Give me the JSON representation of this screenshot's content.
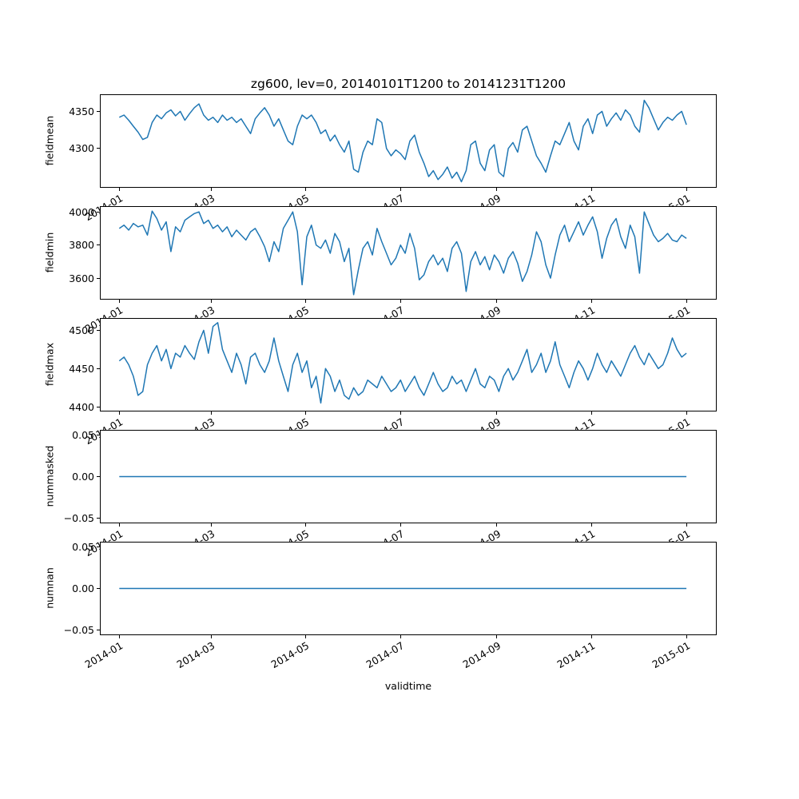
{
  "figure": {
    "title": "zg600, lev=0, 20140101T1200 to 20141231T1200",
    "xlabel": "validtime",
    "line_color": "#1f77b4",
    "axis_color": "#000000",
    "background": "#ffffff"
  },
  "x_axis": {
    "tick_labels": [
      "2014-01",
      "2014-03",
      "2014-05",
      "2014-07",
      "2014-09",
      "2014-11",
      "2015-01"
    ],
    "tick_days": [
      0,
      59,
      120,
      181,
      243,
      304,
      365
    ],
    "xlim_days": [
      -12,
      384
    ],
    "day_range": [
      0,
      365
    ],
    "x_start": "2014-01-01T12:00",
    "x_end": "2015-01-01T12:00"
  },
  "chart_data": [
    {
      "type": "line",
      "ylabel": "fieldmean",
      "ylim": [
        4248,
        4372
      ],
      "yticks": [
        4300,
        4350
      ],
      "ytick_labels": [
        "4300",
        "4350"
      ],
      "values": [
        4342,
        4345,
        4338,
        4330,
        4322,
        4312,
        4315,
        4335,
        4345,
        4340,
        4348,
        4352,
        4344,
        4350,
        4338,
        4347,
        4355,
        4360,
        4345,
        4338,
        4342,
        4335,
        4345,
        4338,
        4342,
        4335,
        4340,
        4330,
        4320,
        4340,
        4348,
        4355,
        4345,
        4330,
        4340,
        4325,
        4310,
        4305,
        4330,
        4345,
        4340,
        4345,
        4335,
        4320,
        4325,
        4310,
        4318,
        4305,
        4295,
        4310,
        4272,
        4268,
        4295,
        4310,
        4305,
        4340,
        4335,
        4300,
        4290,
        4298,
        4293,
        4285,
        4310,
        4318,
        4295,
        4280,
        4262,
        4270,
        4258,
        4265,
        4275,
        4260,
        4268,
        4255,
        4270,
        4305,
        4310,
        4280,
        4270,
        4298,
        4305,
        4268,
        4262,
        4300,
        4308,
        4295,
        4325,
        4330,
        4310,
        4290,
        4280,
        4268,
        4290,
        4310,
        4305,
        4320,
        4335,
        4310,
        4298,
        4330,
        4340,
        4320,
        4345,
        4350,
        4330,
        4340,
        4348,
        4338,
        4352,
        4345,
        4330,
        4322,
        4365,
        4355,
        4340,
        4325,
        4335,
        4342,
        4338,
        4345,
        4350,
        4332
      ]
    },
    {
      "type": "line",
      "ylabel": "fieldmin",
      "ylim": [
        3475,
        4030
      ],
      "yticks": [
        3600,
        3800,
        4000
      ],
      "ytick_labels": [
        "3600",
        "3800",
        "4000"
      ],
      "values": [
        3900,
        3920,
        3890,
        3930,
        3910,
        3920,
        3860,
        4005,
        3960,
        3890,
        3940,
        3760,
        3910,
        3880,
        3950,
        3970,
        3990,
        4000,
        3930,
        3950,
        3900,
        3920,
        3880,
        3910,
        3850,
        3890,
        3860,
        3830,
        3880,
        3900,
        3850,
        3790,
        3700,
        3820,
        3760,
        3900,
        3950,
        4000,
        3880,
        3560,
        3850,
        3920,
        3800,
        3780,
        3830,
        3750,
        3870,
        3820,
        3700,
        3780,
        3500,
        3650,
        3780,
        3820,
        3740,
        3900,
        3820,
        3750,
        3680,
        3720,
        3800,
        3750,
        3870,
        3780,
        3590,
        3620,
        3700,
        3740,
        3680,
        3720,
        3640,
        3780,
        3820,
        3750,
        3520,
        3700,
        3760,
        3680,
        3730,
        3650,
        3740,
        3700,
        3630,
        3720,
        3760,
        3690,
        3580,
        3640,
        3740,
        3880,
        3820,
        3680,
        3600,
        3740,
        3860,
        3920,
        3820,
        3880,
        3940,
        3860,
        3920,
        3970,
        3880,
        3720,
        3840,
        3920,
        3960,
        3850,
        3780,
        3920,
        3850,
        3630,
        4000,
        3930,
        3860,
        3820,
        3840,
        3870,
        3830,
        3820,
        3860,
        3840
      ]
    },
    {
      "type": "line",
      "ylabel": "fieldmax",
      "ylim": [
        4395,
        4515
      ],
      "yticks": [
        4400,
        4450,
        4500
      ],
      "ytick_labels": [
        "4400",
        "4450",
        "4500"
      ],
      "values": [
        4460,
        4465,
        4455,
        4440,
        4415,
        4420,
        4455,
        4470,
        4480,
        4460,
        4475,
        4450,
        4470,
        4465,
        4480,
        4470,
        4462,
        4485,
        4500,
        4470,
        4505,
        4510,
        4475,
        4460,
        4445,
        4470,
        4455,
        4430,
        4465,
        4470,
        4455,
        4445,
        4460,
        4490,
        4460,
        4440,
        4420,
        4455,
        4470,
        4445,
        4460,
        4425,
        4440,
        4405,
        4450,
        4440,
        4420,
        4435,
        4415,
        4410,
        4425,
        4415,
        4420,
        4435,
        4430,
        4425,
        4440,
        4430,
        4420,
        4425,
        4435,
        4420,
        4430,
        4440,
        4425,
        4415,
        4430,
        4445,
        4430,
        4420,
        4425,
        4440,
        4430,
        4435,
        4420,
        4435,
        4450,
        4430,
        4425,
        4440,
        4435,
        4420,
        4440,
        4450,
        4435,
        4445,
        4460,
        4475,
        4445,
        4455,
        4470,
        4445,
        4460,
        4485,
        4455,
        4440,
        4425,
        4445,
        4460,
        4450,
        4435,
        4450,
        4470,
        4455,
        4445,
        4460,
        4450,
        4440,
        4455,
        4470,
        4480,
        4465,
        4455,
        4470,
        4460,
        4450,
        4455,
        4470,
        4490,
        4475,
        4465,
        4470
      ]
    },
    {
      "type": "line",
      "ylabel": "nummasked",
      "ylim": [
        -0.055,
        0.055
      ],
      "yticks": [
        -0.05,
        0,
        0.05
      ],
      "ytick_labels": [
        "−0.05",
        "0.00",
        "0.05"
      ],
      "values": [
        0,
        0
      ]
    },
    {
      "type": "line",
      "ylabel": "numnan",
      "ylim": [
        -0.055,
        0.055
      ],
      "yticks": [
        -0.05,
        0,
        0.05
      ],
      "ytick_labels": [
        "−0.05",
        "0.00",
        "0.05"
      ],
      "values": [
        0,
        0
      ]
    }
  ]
}
